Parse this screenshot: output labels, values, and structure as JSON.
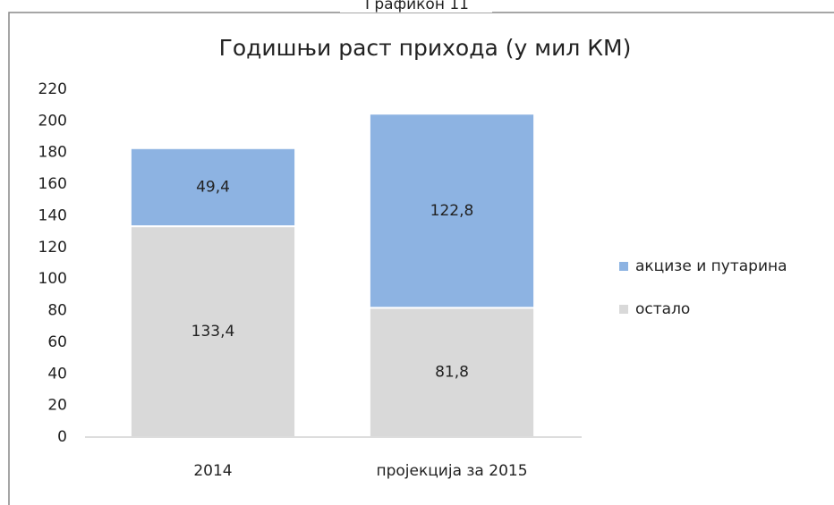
{
  "caption": "Графикон 11",
  "chart_data": {
    "type": "stacked_bar",
    "title": "Годишњи раст прихода (у мил КМ)",
    "categories": [
      "2014",
      "пројекција за 2015"
    ],
    "series": [
      {
        "name": "остало",
        "color": "#d9d9d9",
        "values": [
          133.4,
          81.8
        ],
        "value_labels": [
          "133,4",
          "81,8"
        ]
      },
      {
        "name": "акцизе и путарина",
        "color": "#8db3e2",
        "values": [
          49.4,
          122.8
        ],
        "value_labels": [
          "49,4",
          "122,8"
        ]
      }
    ],
    "ylim": [
      0,
      220
    ],
    "yticks": [
      0,
      20,
      40,
      60,
      80,
      100,
      120,
      140,
      160,
      180,
      200,
      220
    ],
    "grid": false,
    "legend": "right"
  }
}
